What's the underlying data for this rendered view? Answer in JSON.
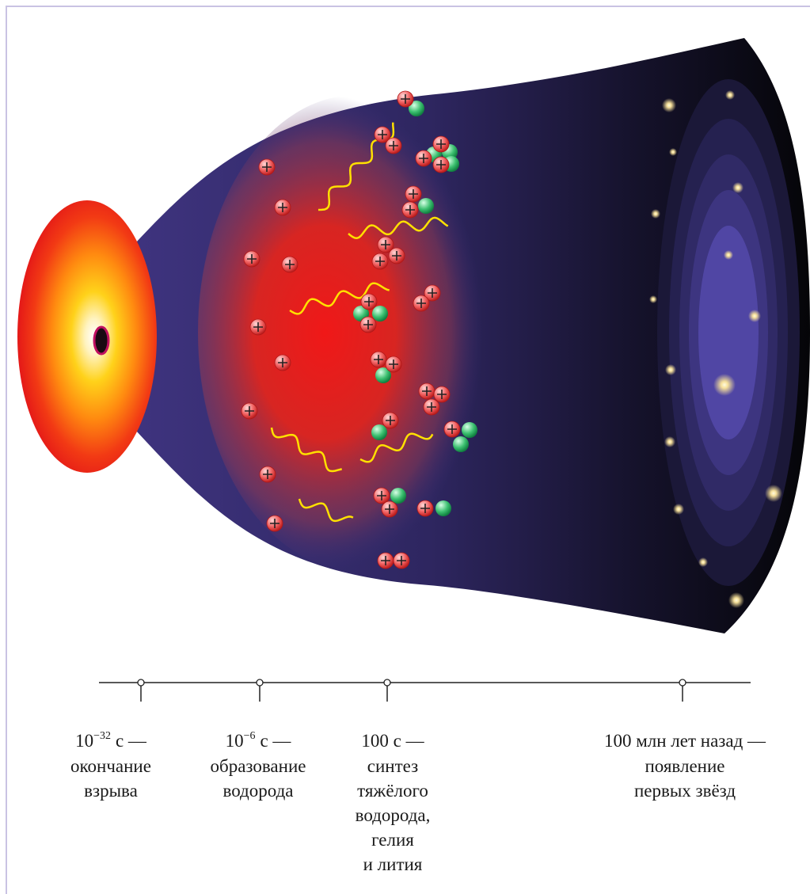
{
  "timeline": {
    "events": [
      {
        "time": {
          "base": "10",
          "exponent": "−32",
          "unit": "с —"
        },
        "lines": [
          "окончание",
          "взрыва"
        ]
      },
      {
        "time": {
          "base": "10",
          "exponent": "−6",
          "unit": "с —"
        },
        "lines": [
          "образование",
          "водорода"
        ]
      },
      {
        "time": {
          "base": "100 с —"
        },
        "lines": [
          "синтез",
          "тяжёлого",
          "водорода,",
          "гелия",
          "и лития"
        ]
      },
      {
        "time": {
          "base": "100 млн лет назад —"
        },
        "lines": [
          "появление",
          "первых звёзд"
        ]
      }
    ]
  }
}
